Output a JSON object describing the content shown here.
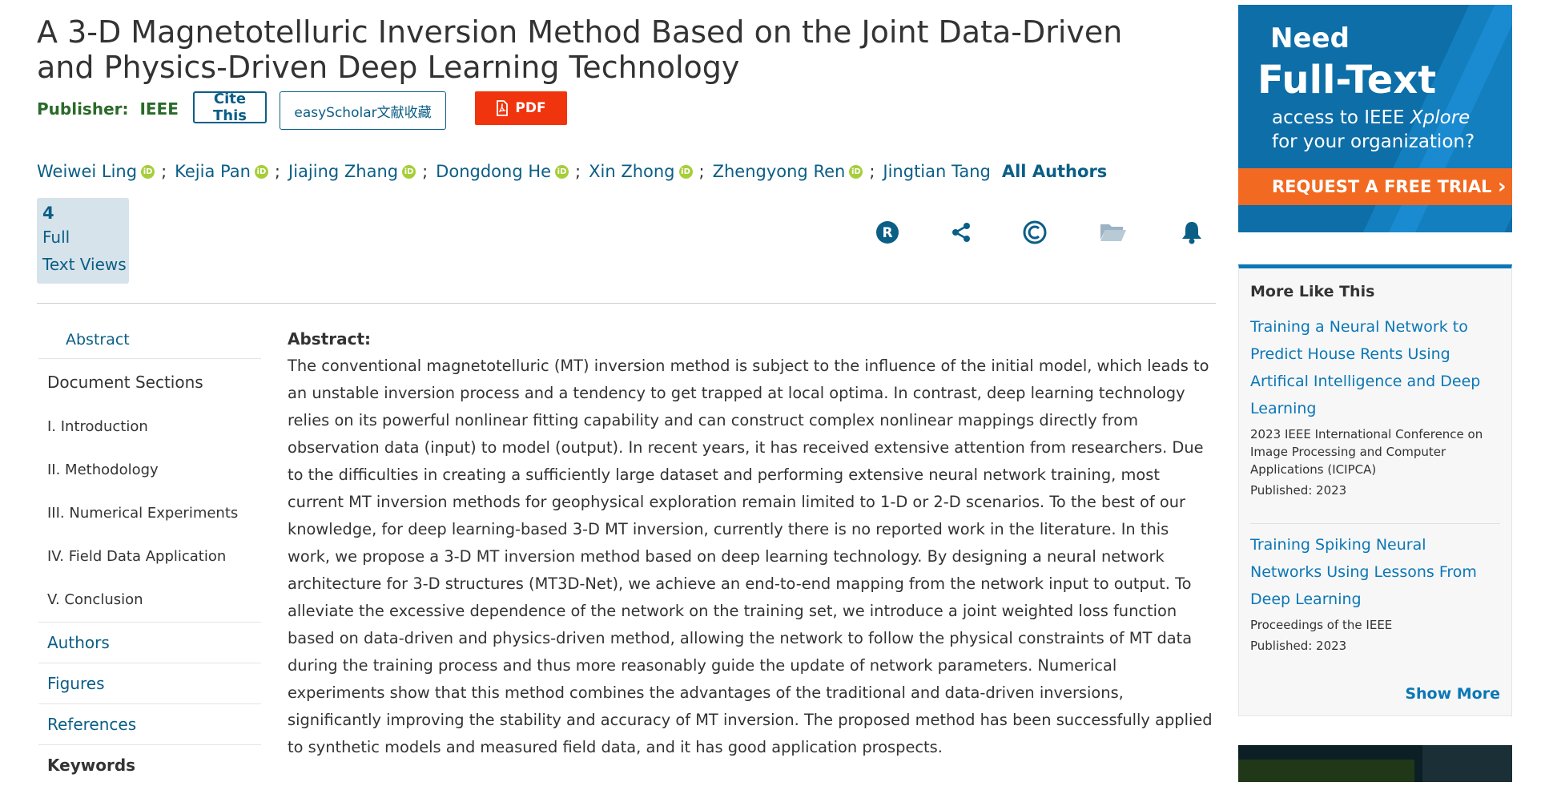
{
  "title": "A 3-D Magnetotelluric Inversion Method Based on the Joint Data-Driven and Physics-Driven Deep Learning Technology",
  "publisher": {
    "label": "Publisher:",
    "name": "IEEE"
  },
  "buttons": {
    "cite": "Cite This",
    "easyscholar": "easyScholar文献收藏",
    "pdf": "PDF"
  },
  "authors": [
    "Weiwei Ling",
    "Kejia Pan",
    "Jiajing Zhang",
    "Dongdong He",
    "Xin Zhong",
    "Zhengyong Ren",
    "Jingtian Tang"
  ],
  "authors_separator": ";",
  "orcid_icon_text": "iD",
  "all_authors": "All Authors",
  "metrics": {
    "count": "4",
    "line1": "Full",
    "line2": "Text Views"
  },
  "toolbar_icons": [
    "rights-icon",
    "share-icon",
    "copyright-icon",
    "folder-icon",
    "bell-icon"
  ],
  "toc": {
    "abstract": "Abstract",
    "document_sections": "Document Sections",
    "sections": [
      "I.  Introduction",
      "II.  Methodology",
      "III.  Numerical Experiments",
      "IV.  Field Data Application",
      "V.  Conclusion"
    ],
    "authors": "Authors",
    "figures": "Figures",
    "references": "References",
    "keywords": "Keywords"
  },
  "abstract": {
    "heading": "Abstract:",
    "text": "The conventional magnetotelluric (MT) inversion method is subject to the influence of the initial model, which leads to an unstable inversion process and a tendency to get trapped at local optima. In contrast, deep learning technology relies on its powerful nonlinear fitting capability and can construct complex nonlinear mappings directly from observation data (input) to model (output). In recent years, it has received extensive attention from researchers. Due to the difficulties in creating a sufficiently large dataset and performing extensive neural network training, most current MT inversion methods for geophysical exploration remain limited to 1-D or 2-D scenarios. To the best of our knowledge, for deep learning-based 3-D MT inversion, currently there is no reported work in the literature. In this work, we propose a 3-D MT inversion method based on deep learning technology. By designing a neural network architecture for 3-D structures (MT3D-Net), we achieve an end-to-end mapping from the network input to output. To alleviate the excessive dependence of the network on the training set, we introduce a joint weighted loss function based on data-driven and physics-driven method, allowing the network to follow the physical constraints of MT data during the training process and thus more reasonably guide the update of network parameters. Numerical experiments show that this method combines the advantages of the traditional and data-driven inversions, significantly improving the stability and accuracy of MT inversion. The proposed method has been successfully applied to synthetic models and measured field data, and it has good application prospects."
  },
  "ad": {
    "need": "Need",
    "fulltext": "Full-Text",
    "sub_line1_prefix": "access to IEEE ",
    "sub_line1_italic": "Xplore",
    "sub_line2": "for your organization?",
    "cta": "REQUEST A FREE TRIAL",
    "cta_arrow": "›"
  },
  "more_like_this": {
    "heading": "More Like This",
    "items": [
      {
        "title": "Training a Neural Network to Predict House Rents Using Artifical Intelligence and Deep Learning",
        "venue": "2023 IEEE International Conference on Image Processing and Computer Applications (ICIPCA)",
        "published": "Published: 2023"
      },
      {
        "title": "Training Spiking Neural Networks Using Lessons From Deep Learning",
        "venue": "Proceedings of the IEEE",
        "published": "Published: 2023"
      }
    ],
    "show_more": "Show More"
  },
  "colors": {
    "link": "#0b5e86",
    "publisher_green": "#2a6a2a",
    "pdf_red": "#f0340e",
    "ad_blue": "#0d6ea8",
    "ad_orange": "#f26a21",
    "orcid_green": "#a6ce39"
  }
}
